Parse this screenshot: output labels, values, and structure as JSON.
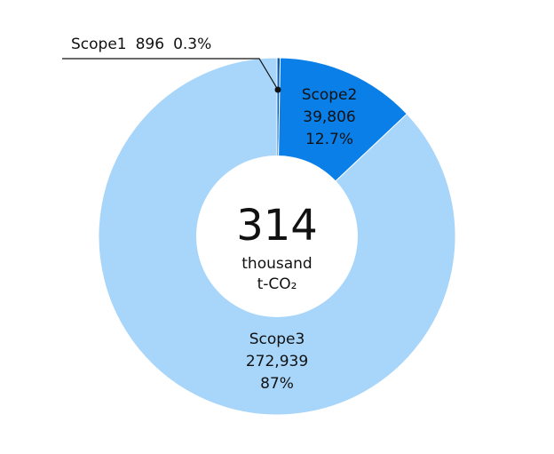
{
  "chart_data": {
    "type": "donut",
    "categories": [
      "Scope1",
      "Scope2",
      "Scope3"
    ],
    "values": [
      896,
      39806,
      272939
    ],
    "value_labels": [
      "896",
      "39,806",
      "272,939"
    ],
    "percentages": [
      0.3,
      12.7,
      87
    ],
    "percentage_labels": [
      "0.3%",
      "12.7%",
      "87%"
    ],
    "colors": [
      "#0b5cb5",
      "#0a7fe8",
      "#a8d5fa"
    ],
    "total": 314,
    "total_unit": "thousand",
    "total_substance": "t-CO₂"
  }
}
